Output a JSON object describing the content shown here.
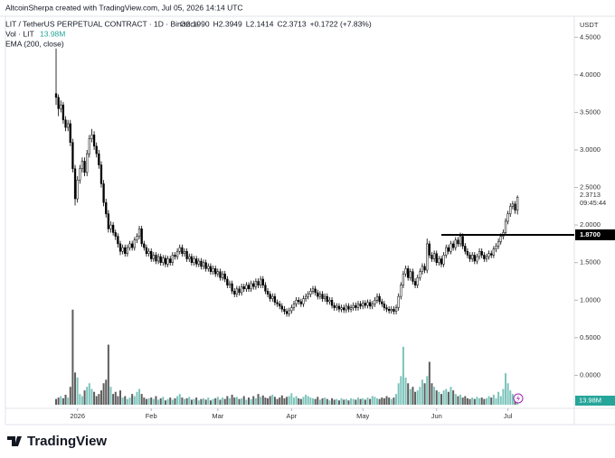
{
  "chart_data": {
    "type": "candlestick",
    "attribution": "AltcoinSherpa created with TradingView.com, Jul 05, 2026 14:14 UTC",
    "title": "LIT / TetherUS PERPETUAL CONTRACT · 1D · Binance",
    "ohlc_legend": [
      "O2.1990",
      "H2.3949",
      "L2.1414",
      "C2.3713",
      "+0.1722 (+7.83%)"
    ],
    "volume_legend": "Vol · LIT",
    "volume_legend_value": "13.98M",
    "indicator_legend": "EMA (200, close)",
    "currency": "USDT",
    "brand": "TradingView",
    "up_color": "#ffffff",
    "down_color": "#000000",
    "volume_up_color": "#7cc4bb",
    "volume_down_color": "#5d5d5d",
    "xlim": [
      -21.3,
      217.9
    ],
    "xticks": [
      {
        "value": 9,
        "label": "2026"
      },
      {
        "value": 40,
        "label": "Feb"
      },
      {
        "value": 68,
        "label": "Mar"
      },
      {
        "value": 99,
        "label": "Apr"
      },
      {
        "value": 129,
        "label": "May"
      },
      {
        "value": 160,
        "label": "Jun"
      },
      {
        "value": 190,
        "label": "Jul"
      }
    ],
    "ylim": [
      -0.44,
      4.78
    ],
    "yticks": [
      {
        "value": 0,
        "label": "0.0000"
      },
      {
        "value": 0.5,
        "label": "0.5000"
      },
      {
        "value": 1,
        "label": "1.0000"
      },
      {
        "value": 1.5,
        "label": "1.5000"
      },
      {
        "value": 2,
        "label": "2.0000"
      },
      {
        "value": 2.5,
        "label": "2.5000"
      },
      {
        "value": 3,
        "label": "3.0000"
      },
      {
        "value": 3.5,
        "label": "3.5000"
      },
      {
        "value": 4,
        "label": "4.0000"
      },
      {
        "value": 4.5,
        "label": "4.5000"
      }
    ],
    "ohlc": [
      [
        3.75,
        4.35,
        3.6,
        3.7
      ],
      [
        3.7,
        3.74,
        3.45,
        3.55
      ],
      [
        3.55,
        3.66,
        3.5,
        3.6
      ],
      [
        3.6,
        3.64,
        3.35,
        3.4
      ],
      [
        3.4,
        3.45,
        3.25,
        3.3
      ],
      [
        3.3,
        3.4,
        3.25,
        3.35
      ],
      [
        3.35,
        3.4,
        3.05,
        3.1
      ],
      [
        3.1,
        3.15,
        2.7,
        2.75
      ],
      [
        2.75,
        2.8,
        2.26,
        2.35
      ],
      [
        2.35,
        2.65,
        2.3,
        2.6
      ],
      [
        2.6,
        2.8,
        2.55,
        2.75
      ],
      [
        2.75,
        2.9,
        2.7,
        2.85
      ],
      [
        2.85,
        2.9,
        2.65,
        2.7
      ],
      [
        2.7,
        3.0,
        2.65,
        2.95
      ],
      [
        2.95,
        3.2,
        2.9,
        3.15
      ],
      [
        3.15,
        3.28,
        3.1,
        3.2
      ],
      [
        3.2,
        3.25,
        3.0,
        3.05
      ],
      [
        3.05,
        3.1,
        2.9,
        2.95
      ],
      [
        2.95,
        3.0,
        2.75,
        2.8
      ],
      [
        2.8,
        2.85,
        2.5,
        2.55
      ],
      [
        2.55,
        2.6,
        2.25,
        2.3
      ],
      [
        2.3,
        2.35,
        2.1,
        2.15
      ],
      [
        2.15,
        2.2,
        1.9,
        1.95
      ],
      [
        1.95,
        2.05,
        1.9,
        2.0
      ],
      [
        2.0,
        2.04,
        1.86,
        1.9
      ],
      [
        1.9,
        1.94,
        1.8,
        1.85
      ],
      [
        1.85,
        1.89,
        1.7,
        1.75
      ],
      [
        1.75,
        1.79,
        1.6,
        1.65
      ],
      [
        1.65,
        1.74,
        1.61,
        1.7
      ],
      [
        1.7,
        1.74,
        1.58,
        1.62
      ],
      [
        1.62,
        1.74,
        1.58,
        1.7
      ],
      [
        1.7,
        1.79,
        1.66,
        1.75
      ],
      [
        1.75,
        1.79,
        1.66,
        1.7
      ],
      [
        1.7,
        1.84,
        1.66,
        1.8
      ],
      [
        1.8,
        1.89,
        1.76,
        1.85
      ],
      [
        1.85,
        1.99,
        1.81,
        1.95
      ],
      [
        1.95,
        1.99,
        1.71,
        1.75
      ],
      [
        1.75,
        1.79,
        1.66,
        1.7
      ],
      [
        1.7,
        1.74,
        1.58,
        1.62
      ],
      [
        1.62,
        1.69,
        1.58,
        1.65
      ],
      [
        1.65,
        1.69,
        1.51,
        1.55
      ],
      [
        1.55,
        1.64,
        1.51,
        1.6
      ],
      [
        1.6,
        1.64,
        1.48,
        1.52
      ],
      [
        1.52,
        1.62,
        1.48,
        1.58
      ],
      [
        1.58,
        1.62,
        1.46,
        1.5
      ],
      [
        1.5,
        1.6,
        1.46,
        1.56
      ],
      [
        1.56,
        1.6,
        1.44,
        1.48
      ],
      [
        1.48,
        1.59,
        1.44,
        1.55
      ],
      [
        1.55,
        1.59,
        1.46,
        1.5
      ],
      [
        1.5,
        1.64,
        1.46,
        1.6
      ],
      [
        1.6,
        1.64,
        1.54,
        1.58
      ],
      [
        1.58,
        1.69,
        1.54,
        1.65
      ],
      [
        1.65,
        1.74,
        1.61,
        1.7
      ],
      [
        1.7,
        1.74,
        1.58,
        1.62
      ],
      [
        1.62,
        1.69,
        1.58,
        1.65
      ],
      [
        1.65,
        1.69,
        1.51,
        1.55
      ],
      [
        1.55,
        1.62,
        1.51,
        1.58
      ],
      [
        1.58,
        1.62,
        1.46,
        1.5
      ],
      [
        1.5,
        1.59,
        1.46,
        1.55
      ],
      [
        1.55,
        1.59,
        1.44,
        1.48
      ],
      [
        1.48,
        1.56,
        1.44,
        1.52
      ],
      [
        1.52,
        1.56,
        1.41,
        1.45
      ],
      [
        1.45,
        1.54,
        1.41,
        1.5
      ],
      [
        1.5,
        1.54,
        1.38,
        1.42
      ],
      [
        1.42,
        1.49,
        1.38,
        1.45
      ],
      [
        1.45,
        1.49,
        1.34,
        1.38
      ],
      [
        1.38,
        1.46,
        1.34,
        1.42
      ],
      [
        1.42,
        1.46,
        1.31,
        1.35
      ],
      [
        1.35,
        1.42,
        1.31,
        1.38
      ],
      [
        1.38,
        1.42,
        1.26,
        1.3
      ],
      [
        1.3,
        1.39,
        1.26,
        1.35
      ],
      [
        1.35,
        1.39,
        1.24,
        1.28
      ],
      [
        1.28,
        1.32,
        1.16,
        1.2
      ],
      [
        1.2,
        1.26,
        1.16,
        1.22
      ],
      [
        1.22,
        1.26,
        1.08,
        1.12
      ],
      [
        1.12,
        1.16,
        1.04,
        1.08
      ],
      [
        1.08,
        1.19,
        1.04,
        1.15
      ],
      [
        1.15,
        1.19,
        1.06,
        1.1
      ],
      [
        1.1,
        1.22,
        1.06,
        1.18
      ],
      [
        1.18,
        1.22,
        1.11,
        1.15
      ],
      [
        1.15,
        1.24,
        1.11,
        1.2
      ],
      [
        1.2,
        1.24,
        1.11,
        1.15
      ],
      [
        1.15,
        1.26,
        1.11,
        1.22
      ],
      [
        1.22,
        1.26,
        1.14,
        1.18
      ],
      [
        1.18,
        1.29,
        1.14,
        1.25
      ],
      [
        1.25,
        1.29,
        1.16,
        1.2
      ],
      [
        1.2,
        1.32,
        1.16,
        1.28
      ],
      [
        1.28,
        1.32,
        1.16,
        1.2
      ],
      [
        1.2,
        1.24,
        1.08,
        1.12
      ],
      [
        1.12,
        1.16,
        1.04,
        1.08
      ],
      [
        1.08,
        1.12,
        0.98,
        1.02
      ],
      [
        1.02,
        1.09,
        0.98,
        1.05
      ],
      [
        1.05,
        1.09,
        0.93,
        0.97
      ],
      [
        0.97,
        1.01,
        0.91,
        0.95
      ],
      [
        0.95,
        0.99,
        0.88,
        0.92
      ],
      [
        0.92,
        0.96,
        0.84,
        0.88
      ],
      [
        0.88,
        0.92,
        0.81,
        0.85
      ],
      [
        0.85,
        0.89,
        0.78,
        0.82
      ],
      [
        0.82,
        0.9,
        0.78,
        0.86
      ],
      [
        0.86,
        0.94,
        0.82,
        0.9
      ],
      [
        0.9,
        0.99,
        0.86,
        0.95
      ],
      [
        0.95,
        1.04,
        0.91,
        1.0
      ],
      [
        1.0,
        1.04,
        0.94,
        0.98
      ],
      [
        0.98,
        1.02,
        0.91,
        0.95
      ],
      [
        0.95,
        1.06,
        0.91,
        1.02
      ],
      [
        1.02,
        1.09,
        0.98,
        1.05
      ],
      [
        1.05,
        1.12,
        1.01,
        1.08
      ],
      [
        1.08,
        1.16,
        1.04,
        1.12
      ],
      [
        1.12,
        1.19,
        1.08,
        1.15
      ],
      [
        1.15,
        1.19,
        1.06,
        1.1
      ],
      [
        1.1,
        1.14,
        1.01,
        1.05
      ],
      [
        1.05,
        1.12,
        1.01,
        1.08
      ],
      [
        1.08,
        1.12,
        0.98,
        1.02
      ],
      [
        1.02,
        1.09,
        0.98,
        1.05
      ],
      [
        1.05,
        1.09,
        0.94,
        0.98
      ],
      [
        0.98,
        1.04,
        0.94,
        1.0
      ],
      [
        1.0,
        1.04,
        0.89,
        0.93
      ],
      [
        0.93,
        0.97,
        0.86,
        0.9
      ],
      [
        0.9,
        0.96,
        0.86,
        0.92
      ],
      [
        0.92,
        0.96,
        0.84,
        0.88
      ],
      [
        0.88,
        0.94,
        0.84,
        0.9
      ],
      [
        0.9,
        0.94,
        0.83,
        0.87
      ],
      [
        0.87,
        0.96,
        0.83,
        0.92
      ],
      [
        0.92,
        0.96,
        0.84,
        0.88
      ],
      [
        0.88,
        0.94,
        0.84,
        0.9
      ],
      [
        0.9,
        0.97,
        0.86,
        0.93
      ],
      [
        0.93,
        0.97,
        0.86,
        0.9
      ],
      [
        0.9,
        0.99,
        0.86,
        0.95
      ],
      [
        0.95,
        0.99,
        0.88,
        0.92
      ],
      [
        0.92,
        1.0,
        0.88,
        0.96
      ],
      [
        0.96,
        1.0,
        0.89,
        0.93
      ],
      [
        0.93,
        1.01,
        0.89,
        0.97
      ],
      [
        0.97,
        1.01,
        0.88,
        0.92
      ],
      [
        0.92,
        0.99,
        0.88,
        0.95
      ],
      [
        0.95,
        1.04,
        0.91,
        1.0
      ],
      [
        1.0,
        1.09,
        0.96,
        1.05
      ],
      [
        1.05,
        1.09,
        0.94,
        0.98
      ],
      [
        0.98,
        1.02,
        0.91,
        0.95
      ],
      [
        0.95,
        0.99,
        0.86,
        0.9
      ],
      [
        0.9,
        0.94,
        0.84,
        0.88
      ],
      [
        0.88,
        0.92,
        0.82,
        0.86
      ],
      [
        0.86,
        0.92,
        0.82,
        0.88
      ],
      [
        0.88,
        0.92,
        0.81,
        0.85
      ],
      [
        0.85,
        0.94,
        0.81,
        0.9
      ],
      [
        0.9,
        1.09,
        0.86,
        1.05
      ],
      [
        1.05,
        1.24,
        1.01,
        1.2
      ],
      [
        1.2,
        1.39,
        1.16,
        1.35
      ],
      [
        1.35,
        1.46,
        1.31,
        1.42
      ],
      [
        1.42,
        1.46,
        1.26,
        1.3
      ],
      [
        1.3,
        1.42,
        1.26,
        1.38
      ],
      [
        1.38,
        1.42,
        1.21,
        1.25
      ],
      [
        1.25,
        1.29,
        1.16,
        1.2
      ],
      [
        1.2,
        1.34,
        1.16,
        1.3
      ],
      [
        1.3,
        1.42,
        1.26,
        1.38
      ],
      [
        1.38,
        1.49,
        1.34,
        1.45
      ],
      [
        1.45,
        1.49,
        1.36,
        1.4
      ],
      [
        1.4,
        1.82,
        1.36,
        1.75
      ],
      [
        1.75,
        1.79,
        1.56,
        1.6
      ],
      [
        1.6,
        1.64,
        1.51,
        1.55
      ],
      [
        1.55,
        1.66,
        1.51,
        1.62
      ],
      [
        1.62,
        1.66,
        1.46,
        1.5
      ],
      [
        1.5,
        1.59,
        1.46,
        1.55
      ],
      [
        1.55,
        1.59,
        1.44,
        1.48
      ],
      [
        1.48,
        1.64,
        1.44,
        1.6
      ],
      [
        1.6,
        1.74,
        1.56,
        1.7
      ],
      [
        1.7,
        1.74,
        1.61,
        1.65
      ],
      [
        1.65,
        1.79,
        1.61,
        1.75
      ],
      [
        1.75,
        1.79,
        1.66,
        1.7
      ],
      [
        1.7,
        1.84,
        1.66,
        1.8
      ],
      [
        1.8,
        1.84,
        1.71,
        1.75
      ],
      [
        1.75,
        1.9,
        1.71,
        1.85
      ],
      [
        1.85,
        1.89,
        1.68,
        1.72
      ],
      [
        1.72,
        1.76,
        1.61,
        1.65
      ],
      [
        1.65,
        1.69,
        1.56,
        1.6
      ],
      [
        1.6,
        1.64,
        1.51,
        1.55
      ],
      [
        1.55,
        1.64,
        1.51,
        1.6
      ],
      [
        1.6,
        1.64,
        1.48,
        1.52
      ],
      [
        1.52,
        1.62,
        1.48,
        1.58
      ],
      [
        1.58,
        1.69,
        1.54,
        1.65
      ],
      [
        1.65,
        1.69,
        1.56,
        1.6
      ],
      [
        1.6,
        1.64,
        1.51,
        1.55
      ],
      [
        1.55,
        1.62,
        1.51,
        1.58
      ],
      [
        1.58,
        1.66,
        1.54,
        1.62
      ],
      [
        1.62,
        1.66,
        1.56,
        1.6
      ],
      [
        1.6,
        1.72,
        1.56,
        1.68
      ],
      [
        1.68,
        1.76,
        1.64,
        1.72
      ],
      [
        1.72,
        1.82,
        1.68,
        1.78
      ],
      [
        1.78,
        1.89,
        1.74,
        1.85
      ],
      [
        1.85,
        1.94,
        1.81,
        1.9
      ],
      [
        1.9,
        2.09,
        1.86,
        2.05
      ],
      [
        2.05,
        2.19,
        2.01,
        2.15
      ],
      [
        2.15,
        2.29,
        2.11,
        2.25
      ],
      [
        2.25,
        2.32,
        2.21,
        2.28
      ],
      [
        2.28,
        2.32,
        2.15,
        2.199
      ],
      [
        2.199,
        2.3949,
        2.1414,
        2.3713
      ]
    ],
    "volume_ylim": [
      0,
      139
    ],
    "volume": [
      8,
      10,
      12,
      9,
      14,
      10,
      25,
      133,
      45,
      38,
      15,
      12,
      20,
      25,
      30,
      22,
      18,
      12,
      15,
      20,
      30,
      35,
      84,
      25,
      15,
      18,
      12,
      20,
      10,
      12,
      8,
      10,
      15,
      12,
      18,
      22,
      15,
      10,
      8,
      9,
      10,
      8,
      12,
      7,
      9,
      11,
      6,
      8,
      10,
      7,
      9,
      12,
      15,
      10,
      8,
      9,
      11,
      7,
      8,
      10,
      6,
      8,
      9,
      7,
      10,
      6,
      8,
      9,
      11,
      7,
      10,
      8,
      12,
      9,
      14,
      10,
      11,
      8,
      9,
      12,
      7,
      10,
      8,
      12,
      9,
      15,
      11,
      13,
      10,
      9,
      12,
      14,
      11,
      8,
      10,
      13,
      9,
      11,
      12,
      16,
      10,
      12,
      9,
      8,
      11,
      14,
      12,
      10,
      9,
      8,
      11,
      7,
      9,
      10,
      8,
      6,
      9,
      7,
      8,
      6,
      9,
      7,
      8,
      6,
      9,
      8,
      7,
      10,
      8,
      9,
      7,
      10,
      8,
      12,
      11,
      9,
      8,
      10,
      9,
      12,
      10,
      8,
      10,
      15,
      30,
      40,
      81,
      38,
      30,
      22,
      25,
      18,
      20,
      25,
      35,
      30,
      40,
      60,
      30,
      25,
      20,
      18,
      15,
      20,
      22,
      18,
      25,
      20,
      15,
      12,
      14,
      10,
      12,
      9,
      8,
      10,
      8,
      11,
      9,
      10,
      8,
      9,
      12,
      10,
      14,
      9,
      18,
      12,
      22,
      44,
      30,
      20,
      15,
      12,
      13.98
    ],
    "level": {
      "value": 1.87,
      "label": "1.8700",
      "from": 162
    },
    "last_price_label": "2.3713",
    "countdown": "09:45:44",
    "last_volume_label": "13.98M"
  }
}
